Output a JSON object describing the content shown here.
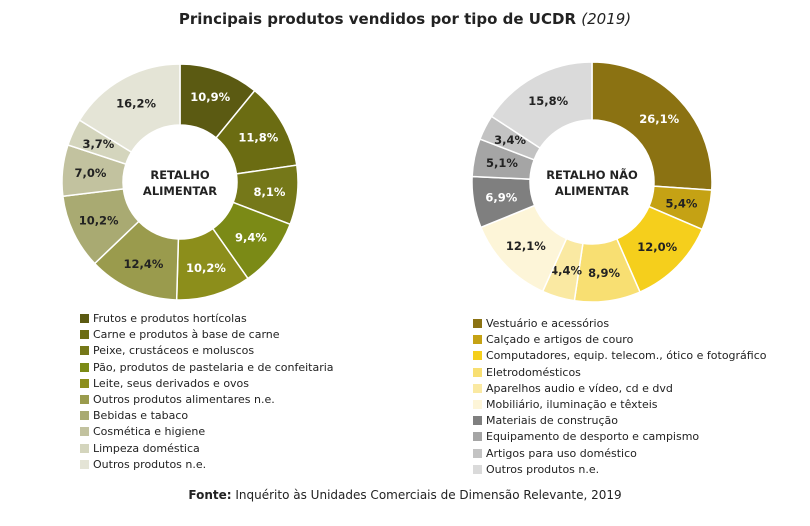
{
  "title": {
    "main": "Principais produtos vendidos por tipo de UCDR",
    "year": "(2019)"
  },
  "source": {
    "label": "Fonte:",
    "text": "Inquérito às Unidades Comerciais de Dimensão Relevante, 2019"
  },
  "chart_data": [
    {
      "type": "pie",
      "center_label": [
        "RETALHO",
        "ALIMENTAR"
      ],
      "categories": [
        "Frutos e produtos hortícolas",
        "Carne e produtos à base de carne",
        "Peixe, crustáceos e moluscos",
        "Pão, produtos de pastelaria e de confeitaria",
        "Leite, seus derivados e ovos",
        "Outros produtos alimentares n.e.",
        "Bebidas e tabaco",
        "Cosmética e higiene",
        "Limpeza doméstica",
        "Outros produtos n.e."
      ],
      "values": [
        10.9,
        11.8,
        8.1,
        9.4,
        10.2,
        12.4,
        10.2,
        7.0,
        3.7,
        16.2
      ],
      "data_labels": [
        "10,9%",
        "11,8%",
        "8,1%",
        "9,4%",
        "10,2%",
        "12,4%",
        "10,2%",
        "7,0%",
        "3,7%",
        "16,2%"
      ],
      "colors": [
        "#5b5a12",
        "#6b6c12",
        "#757819",
        "#7b8a16",
        "#8c8e1b",
        "#9a9b4d",
        "#a9aa72",
        "#c2c29f",
        "#d4d5bd",
        "#e4e4d6"
      ],
      "label_colors": [
        "#ffffff",
        "#ffffff",
        "#ffffff",
        "#ffffff",
        "#ffffff",
        "#222222",
        "#222222",
        "#222222",
        "#222222",
        "#222222"
      ]
    },
    {
      "type": "pie",
      "center_label": [
        "RETALHO NÃO",
        "ALIMENTAR"
      ],
      "categories": [
        "Vestuário e acessórios",
        "Calçado e artigos de couro",
        "Computadores, equip. telecom., ótico e fotográfico",
        "Eletrodomésticos",
        "Aparelhos audio e vídeo, cd e dvd",
        "Mobiliário, iluminação e têxteis",
        "Materiais de construção",
        "Equipamento de desporto e campismo",
        "Artigos para uso doméstico",
        "Outros produtos n.e."
      ],
      "values": [
        26.1,
        5.4,
        12.0,
        8.9,
        4.4,
        12.1,
        6.9,
        5.1,
        3.4,
        15.8
      ],
      "data_labels": [
        "26,1%",
        "5,4%",
        "12,0%",
        "8,9%",
        "4,4%",
        "12,1%",
        "6,9%",
        "5,1%",
        "3,4%",
        "15,8%"
      ],
      "colors": [
        "#8b7212",
        "#c5a214",
        "#f5cf1c",
        "#f8df72",
        "#fae9a2",
        "#fdf5d8",
        "#7f7f7f",
        "#a5a5a5",
        "#c3c3c3",
        "#dadada"
      ],
      "label_colors": [
        "#ffffff",
        "#222222",
        "#222222",
        "#222222",
        "#222222",
        "#222222",
        "#ffffff",
        "#222222",
        "#222222",
        "#222222"
      ]
    }
  ]
}
